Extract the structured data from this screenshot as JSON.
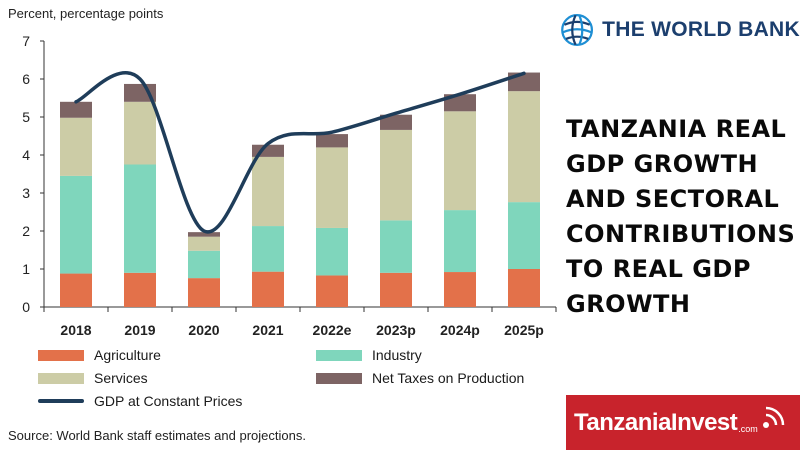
{
  "header": {
    "y_axis_caption": "Percent, percentage points",
    "brand": "THE WORLD BANK"
  },
  "title_lines": [
    "TANZANIA REAL",
    "GDP GROWTH",
    "AND SECTORAL",
    "CONTRIBUTIONS",
    "TO REAL GDP",
    "GROWTH"
  ],
  "source": "Source: World Bank staff estimates and projections.",
  "tanzaniainvest": {
    "name": "TanzaniaInvest",
    "suffix": ".com"
  },
  "colors": {
    "agriculture": "#e3714a",
    "industry": "#7fd6bc",
    "services": "#cccca6",
    "net_taxes": "#7d6464",
    "gdp_line": "#1f3d5a"
  },
  "legend": [
    {
      "key": "agriculture",
      "label": "Agriculture",
      "kind": "box"
    },
    {
      "key": "industry",
      "label": "Industry",
      "kind": "box"
    },
    {
      "key": "services",
      "label": "Services",
      "kind": "box"
    },
    {
      "key": "net_taxes",
      "label": "Net Taxes on Production",
      "kind": "box"
    },
    {
      "key": "gdp_line",
      "label": "GDP at Constant Prices",
      "kind": "line"
    }
  ],
  "chart_data": {
    "type": "bar",
    "stacked": true,
    "ylabel": "Percent, percentage points",
    "ylim": [
      0,
      7
    ],
    "yticks": [
      0,
      1,
      2,
      3,
      4,
      5,
      6,
      7
    ],
    "categories": [
      "2018",
      "2019",
      "2020",
      "2021",
      "2022e",
      "2023p",
      "2024p",
      "2025p"
    ],
    "series": [
      {
        "name": "Agriculture",
        "values": [
          0.88,
          0.9,
          0.76,
          0.93,
          0.83,
          0.9,
          0.92,
          1.0
        ]
      },
      {
        "name": "Industry",
        "values": [
          2.57,
          2.85,
          0.72,
          1.2,
          1.25,
          1.38,
          1.63,
          1.76
        ]
      },
      {
        "name": "Services",
        "values": [
          1.53,
          1.65,
          0.37,
          1.82,
          2.12,
          2.38,
          2.6,
          2.92
        ]
      },
      {
        "name": "Net Taxes on Production",
        "values": [
          0.42,
          0.47,
          0.12,
          0.32,
          0.35,
          0.4,
          0.45,
          0.49
        ]
      }
    ],
    "line": {
      "name": "GDP at Constant Prices",
      "values": [
        5.4,
        6.0,
        2.0,
        4.3,
        4.6,
        5.1,
        5.6,
        6.15
      ]
    },
    "legend_position": "bottom",
    "grid": false
  }
}
